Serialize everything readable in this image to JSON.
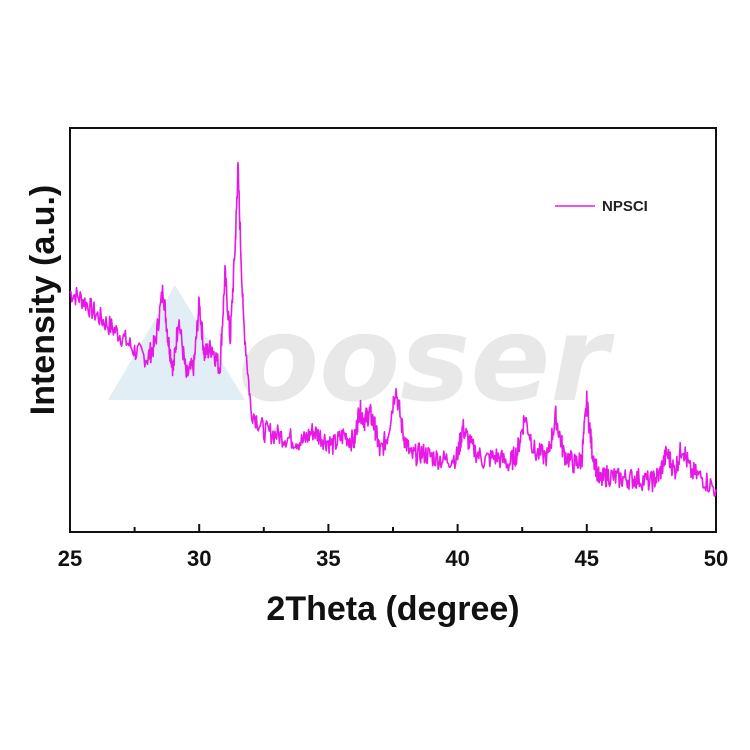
{
  "watermark": {
    "text": "ooser"
  },
  "chart_data": {
    "type": "line",
    "title": "",
    "xlabel": "2Theta (degree)",
    "ylabel": "Intensity (a.u.)",
    "xlim": [
      25,
      50
    ],
    "ylim": [
      0,
      100
    ],
    "x_ticks": [
      25,
      30,
      35,
      40,
      45,
      50
    ],
    "y_ticks": [],
    "grid": false,
    "legend": {
      "placement": "top-right"
    },
    "colors": {
      "series": "#e619e6",
      "axis": "#111111",
      "watermark_icon": "#cfe3f0"
    },
    "series": [
      {
        "name": "NPSCI",
        "x": [
          25.0,
          25.5,
          26.0,
          26.5,
          27.0,
          27.5,
          28.0,
          28.3,
          28.6,
          28.8,
          29.0,
          29.2,
          29.5,
          29.8,
          30.0,
          30.2,
          30.5,
          30.8,
          31.0,
          31.2,
          31.4,
          31.5,
          31.7,
          32.0,
          32.5,
          33.0,
          33.5,
          34.0,
          34.4,
          34.8,
          35.2,
          35.6,
          36.0,
          36.2,
          36.4,
          36.6,
          36.8,
          37.0,
          37.3,
          37.6,
          37.9,
          38.2,
          38.6,
          39.0,
          39.5,
          40.0,
          40.2,
          40.5,
          41.0,
          41.5,
          42.0,
          42.3,
          42.6,
          43.0,
          43.5,
          43.8,
          44.1,
          44.5,
          44.8,
          45.0,
          45.2,
          45.5,
          45.8,
          46.2,
          46.6,
          47.0,
          47.5,
          47.8,
          48.1,
          48.4,
          48.7,
          49.0,
          49.5,
          50.0
        ],
        "y": [
          61,
          59,
          55,
          52,
          49,
          45,
          43,
          47,
          62,
          48,
          40,
          54,
          38,
          41,
          58,
          44,
          46,
          40,
          66,
          48,
          75,
          95,
          55,
          29,
          23,
          22,
          21,
          20,
          23,
          21,
          19,
          22,
          20,
          29,
          26,
          28,
          24,
          17,
          22,
          35,
          22,
          16,
          17,
          16,
          15,
          16,
          24,
          19,
          15,
          16,
          14,
          17,
          27,
          17,
          16,
          27,
          17,
          14,
          15,
          31,
          18,
          9,
          11,
          10,
          10,
          10,
          9,
          11,
          17,
          12,
          19,
          12,
          10,
          7
        ]
      }
    ]
  }
}
